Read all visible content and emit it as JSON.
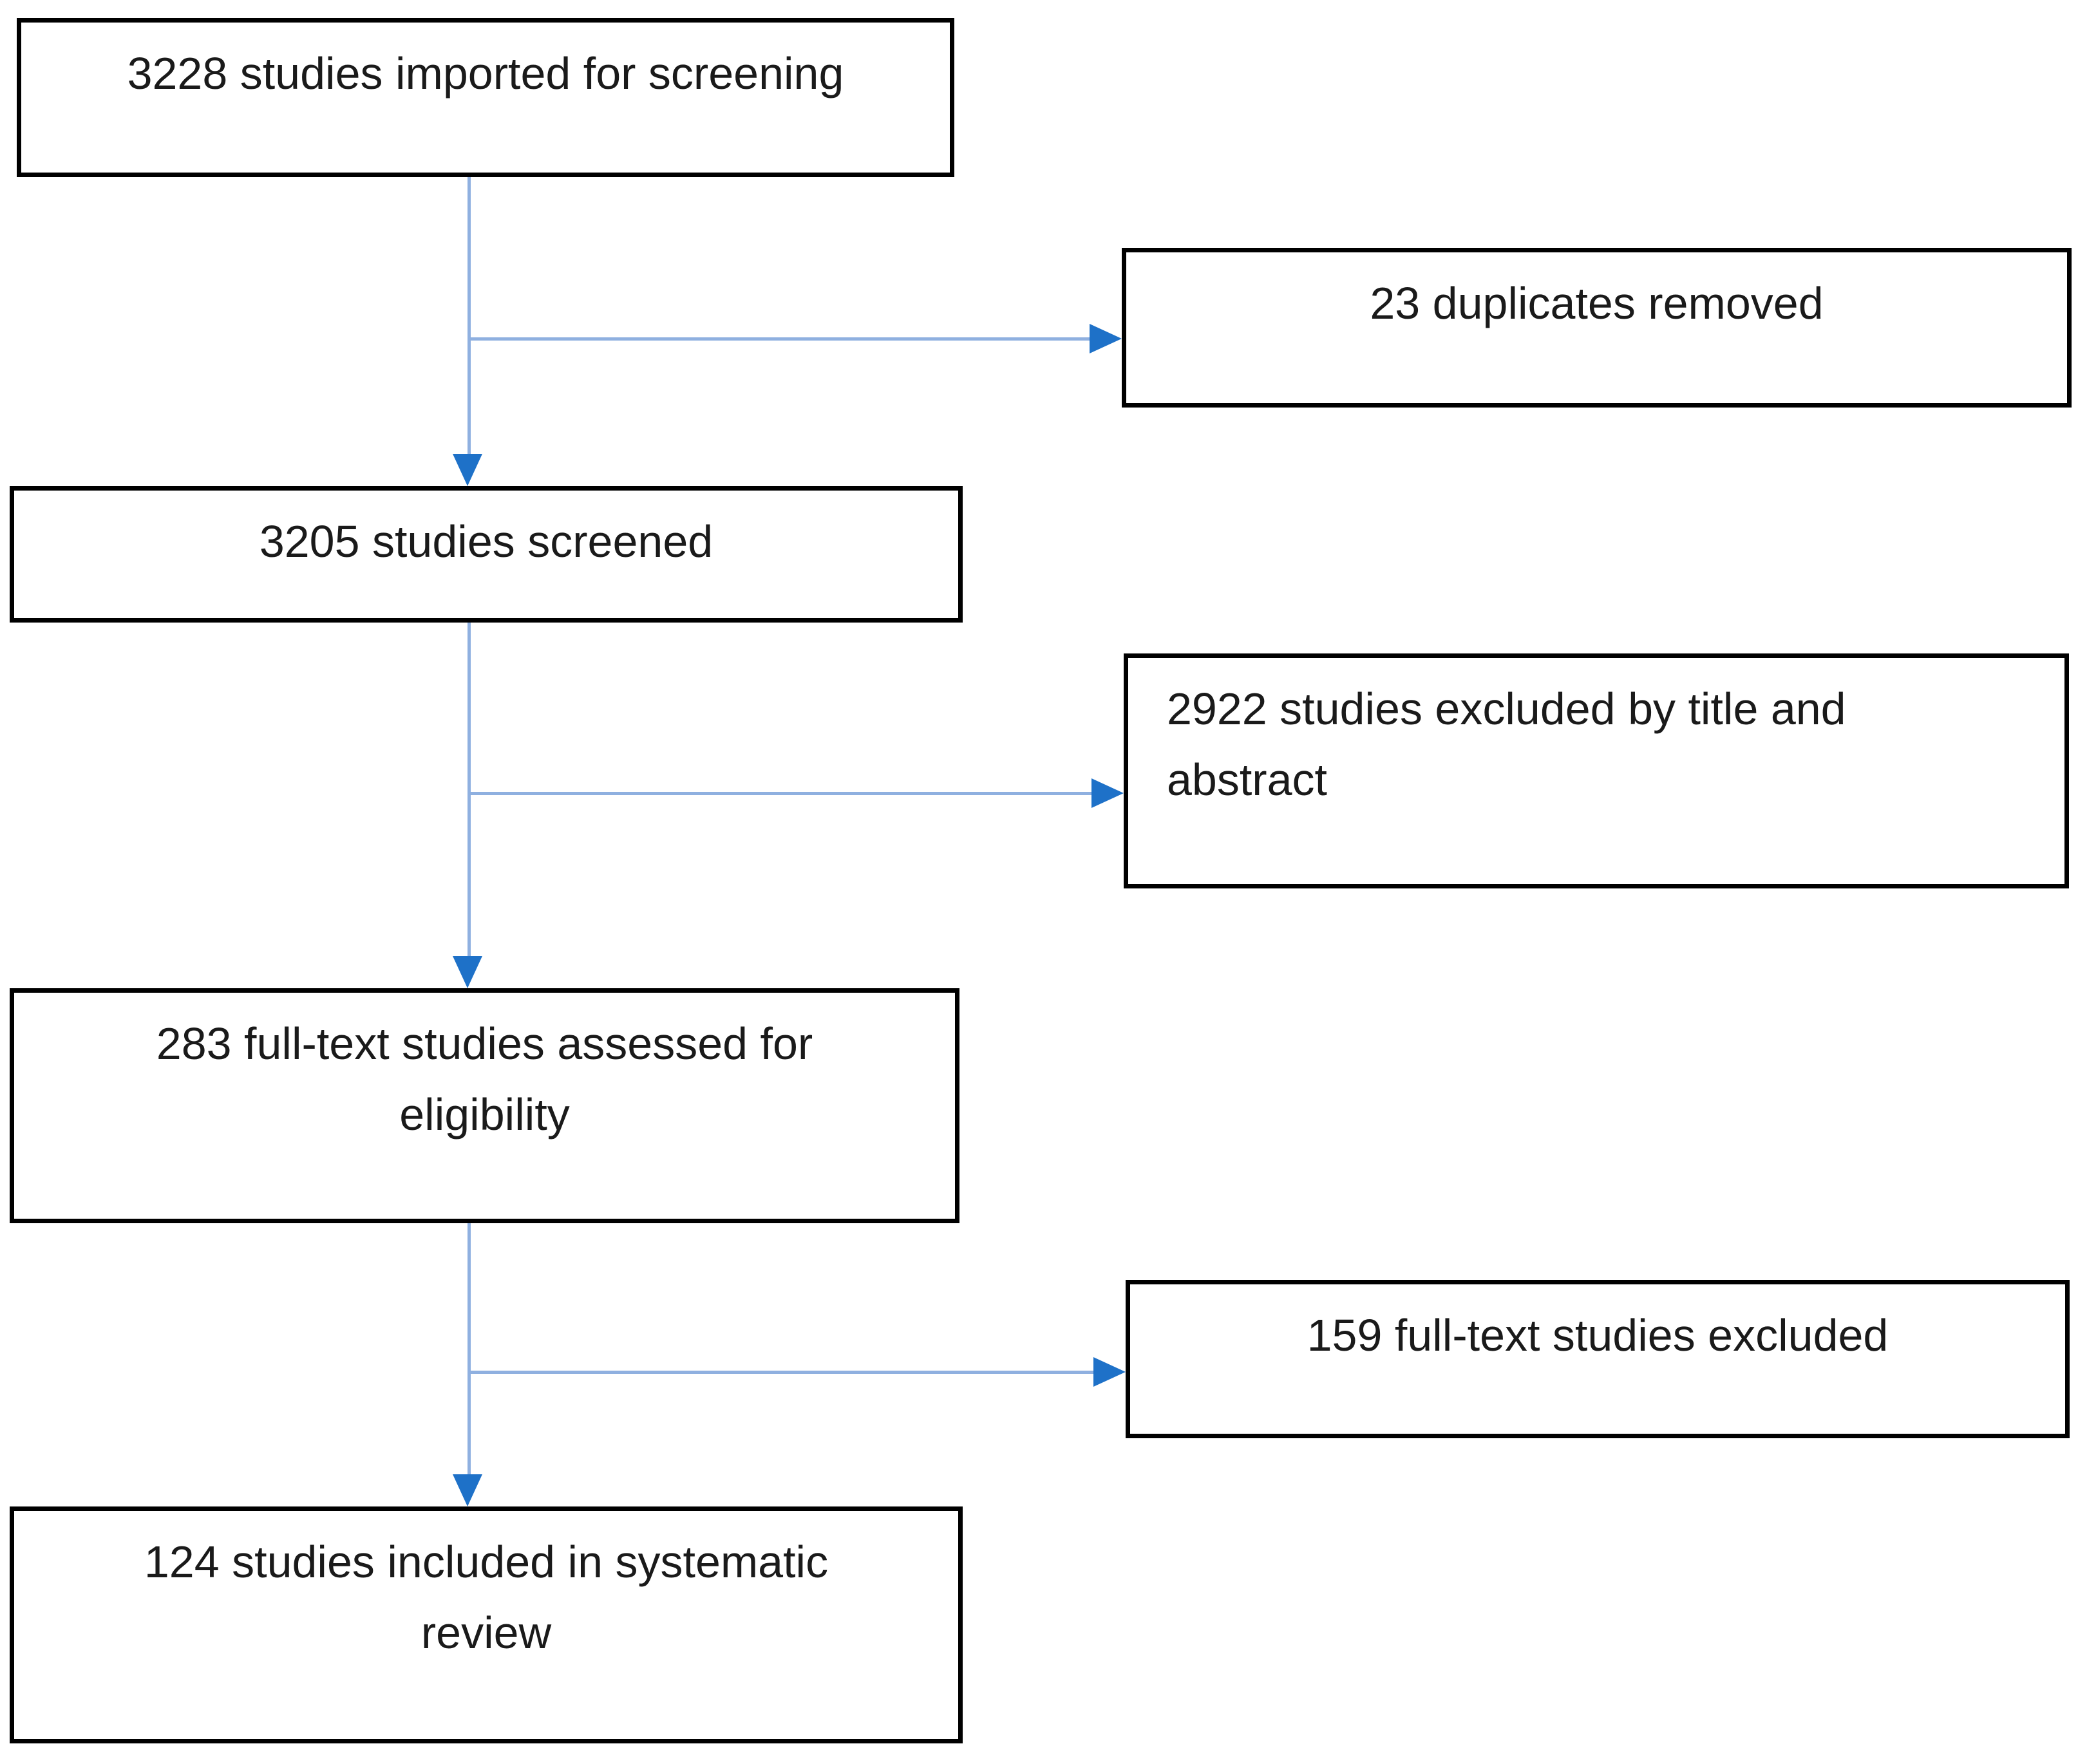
{
  "diagram": {
    "background": "#ffffff",
    "box_border_color": "#000000",
    "text_color": "#1a1a1a",
    "connector_color": "#8fb0e0",
    "arrowhead_color": "#1e71c8",
    "nodes": [
      {
        "id": "imported",
        "label": "3228 studies imported for screening"
      },
      {
        "id": "duplicates-removed",
        "label": "23 duplicates removed"
      },
      {
        "id": "screened",
        "label": "3205 studies screened"
      },
      {
        "id": "excluded-title-abstract",
        "label": "2922 studies excluded by title and\nabstract"
      },
      {
        "id": "fulltext-assessed",
        "label": "283 full-text studies assessed for\neligibility"
      },
      {
        "id": "fulltext-excluded",
        "label": "159 full-text studies excluded"
      },
      {
        "id": "included",
        "label": "124 studies included in systematic\nreview"
      }
    ],
    "edges": [
      {
        "from": "imported",
        "to": "screened"
      },
      {
        "from": "imported",
        "to": "duplicates-removed"
      },
      {
        "from": "screened",
        "to": "fulltext-assessed"
      },
      {
        "from": "screened",
        "to": "excluded-title-abstract"
      },
      {
        "from": "fulltext-assessed",
        "to": "included"
      },
      {
        "from": "fulltext-assessed",
        "to": "fulltext-excluded"
      }
    ]
  }
}
